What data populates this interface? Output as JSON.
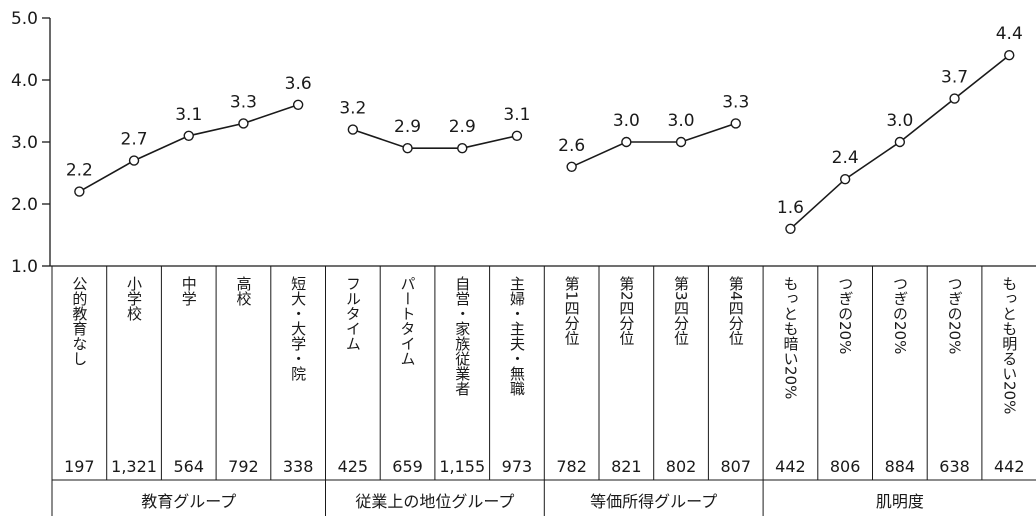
{
  "chart_data": {
    "type": "line",
    "ylim": [
      1.0,
      5.0
    ],
    "yticks": [
      "1.0",
      "2.0",
      "3.0",
      "4.0",
      "5.0"
    ],
    "grid": false,
    "groups": [
      {
        "name": "教育グループ",
        "categories": [
          "公的教育なし",
          "小学校",
          "中学",
          "高校",
          "短大・大学・院"
        ],
        "values": [
          2.2,
          2.7,
          3.1,
          3.3,
          3.6
        ],
        "labels": [
          "2.2",
          "2.7",
          "3.1",
          "3.3",
          "3.6"
        ],
        "n": [
          "197",
          "1,321",
          "564",
          "792",
          "338"
        ]
      },
      {
        "name": "従業上の地位グループ",
        "categories": [
          "フルタイム",
          "パートタイム",
          "自営・家族従業者",
          "主婦・主夫・無職"
        ],
        "values": [
          3.2,
          2.9,
          2.9,
          3.1
        ],
        "labels": [
          "3.2",
          "2.9",
          "2.9",
          "3.1"
        ],
        "n": [
          "425",
          "659",
          "1,155",
          "973"
        ]
      },
      {
        "name": "等価所得グループ",
        "categories": [
          "第1四分位",
          "第2四分位",
          "第3四分位",
          "第4四分位"
        ],
        "values": [
          2.6,
          3.0,
          3.0,
          3.3
        ],
        "labels": [
          "2.6",
          "3.0",
          "3.0",
          "3.3"
        ],
        "n": [
          "782",
          "821",
          "802",
          "807"
        ]
      },
      {
        "name": "肌明度",
        "categories": [
          "もっとも暗い20%",
          "つぎの20%",
          "つぎの20%",
          "つぎの20%",
          "もっとも明るい20%"
        ],
        "values": [
          1.6,
          2.4,
          3.0,
          3.7,
          4.4
        ],
        "labels": [
          "1.6",
          "2.4",
          "3.0",
          "3.7",
          "4.4"
        ],
        "n": [
          "442",
          "806",
          "884",
          "638",
          "442"
        ]
      }
    ]
  }
}
